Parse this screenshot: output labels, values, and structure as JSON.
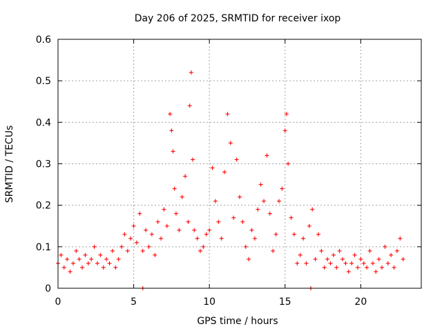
{
  "chart_data": {
    "type": "scatter",
    "title": "Day 206 of 2025, SRMTID for receiver ixop",
    "xlabel": "GPS time / hours",
    "ylabel": "SRMTID / TECUs",
    "xlim": [
      0,
      24
    ],
    "ylim": [
      0,
      0.6
    ],
    "xticks": [
      0,
      5,
      10,
      15,
      20
    ],
    "yticks": [
      0,
      0.1,
      0.2,
      0.3,
      0.4,
      0.5,
      0.6
    ],
    "xtick_labels": [
      "0",
      "5",
      "10",
      "15",
      "20"
    ],
    "ytick_labels": [
      "0",
      "0.1",
      "0.2",
      "0.3",
      "0.4",
      "0.5",
      "0.6"
    ],
    "grid": true,
    "legend": "none",
    "marker": "+",
    "color": "#ff0000",
    "series": [
      {
        "name": "SRMTID",
        "x": [
          0.0,
          0.2,
          0.4,
          0.6,
          0.8,
          1.0,
          1.2,
          1.4,
          1.6,
          1.8,
          2.0,
          2.2,
          2.4,
          2.6,
          2.8,
          3.0,
          3.2,
          3.4,
          3.6,
          3.8,
          4.0,
          4.2,
          4.4,
          4.6,
          4.8,
          5.0,
          5.2,
          5.4,
          5.6,
          5.8,
          6.0,
          6.2,
          6.4,
          6.6,
          6.8,
          7.0,
          7.2,
          7.4,
          7.5,
          7.6,
          7.7,
          7.8,
          8.0,
          8.2,
          8.4,
          8.6,
          8.7,
          8.8,
          8.9,
          9.0,
          9.2,
          9.4,
          9.6,
          9.8,
          10.0,
          10.2,
          10.4,
          10.6,
          10.8,
          11.0,
          11.2,
          11.4,
          11.6,
          11.8,
          12.0,
          12.2,
          12.4,
          12.6,
          12.8,
          13.0,
          13.2,
          13.4,
          13.6,
          13.8,
          14.0,
          14.2,
          14.4,
          14.6,
          14.8,
          15.0,
          15.1,
          15.2,
          15.4,
          15.6,
          15.8,
          16.0,
          16.2,
          16.4,
          16.6,
          16.8,
          17.0,
          17.2,
          17.4,
          17.6,
          17.8,
          18.0,
          18.2,
          18.4,
          18.6,
          18.8,
          19.0,
          19.2,
          19.4,
          19.6,
          19.8,
          20.0,
          20.2,
          20.4,
          20.6,
          20.8,
          21.0,
          21.2,
          21.4,
          21.6,
          21.8,
          22.0,
          22.2,
          22.4,
          22.6,
          22.8,
          5.6,
          16.7
        ],
        "y": [
          0.06,
          0.08,
          0.05,
          0.07,
          0.04,
          0.06,
          0.09,
          0.07,
          0.05,
          0.08,
          0.06,
          0.07,
          0.1,
          0.06,
          0.08,
          0.05,
          0.07,
          0.06,
          0.09,
          0.05,
          0.07,
          0.1,
          0.13,
          0.09,
          0.12,
          0.15,
          0.11,
          0.18,
          0.09,
          0.14,
          0.1,
          0.13,
          0.08,
          0.16,
          0.12,
          0.19,
          0.15,
          0.42,
          0.38,
          0.33,
          0.24,
          0.18,
          0.14,
          0.22,
          0.27,
          0.16,
          0.44,
          0.52,
          0.31,
          0.14,
          0.12,
          0.09,
          0.1,
          0.13,
          0.14,
          0.29,
          0.21,
          0.16,
          0.12,
          0.28,
          0.42,
          0.35,
          0.17,
          0.31,
          0.22,
          0.16,
          0.1,
          0.07,
          0.14,
          0.12,
          0.19,
          0.25,
          0.21,
          0.32,
          0.18,
          0.09,
          0.13,
          0.21,
          0.24,
          0.38,
          0.42,
          0.3,
          0.17,
          0.13,
          0.06,
          0.08,
          0.12,
          0.06,
          0.15,
          0.19,
          0.07,
          0.13,
          0.09,
          0.05,
          0.07,
          0.06,
          0.08,
          0.05,
          0.09,
          0.07,
          0.06,
          0.04,
          0.06,
          0.08,
          0.05,
          0.07,
          0.06,
          0.05,
          0.09,
          0.06,
          0.04,
          0.07,
          0.05,
          0.1,
          0.06,
          0.08,
          0.05,
          0.09,
          0.12,
          0.07,
          0.0,
          0.0
        ]
      }
    ]
  }
}
